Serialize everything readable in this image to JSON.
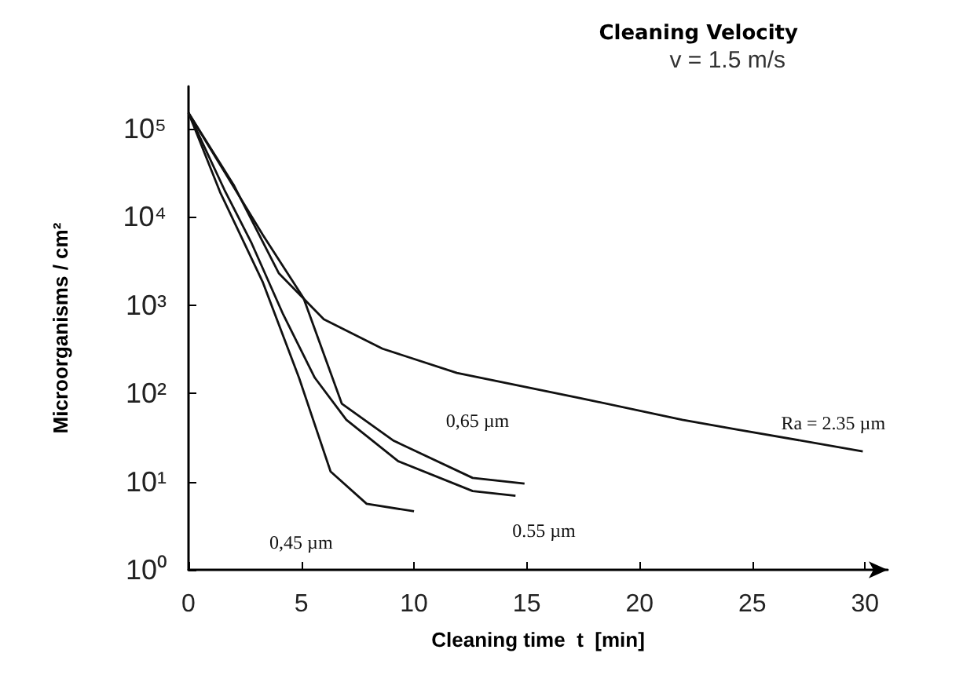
{
  "chart_data": {
    "type": "line",
    "title": "Cleaning Velocity",
    "subtitle": "v = 1.5 m/s",
    "xlabel": "Cleaning time  t  [min]",
    "ylabel": "Microorganisms / cm²",
    "log": "y",
    "grid": false,
    "marker": "none",
    "line_style": "solid",
    "xlim": [
      0,
      31
    ],
    "xticks": [
      0,
      5,
      10,
      15,
      20,
      25,
      30
    ],
    "ylim": [
      1,
      300000
    ],
    "yticks": [
      {
        "value": 1,
        "label": "10⁰"
      },
      {
        "value": 10,
        "label": "10¹"
      },
      {
        "value": 100,
        "label": "10²"
      },
      {
        "value": 1000,
        "label": "10³"
      },
      {
        "value": 10000,
        "label": "10⁴"
      },
      {
        "value": 100000,
        "label": "10⁵"
      }
    ],
    "series": [
      {
        "name": "Ra = 2.35 µm",
        "color": "#111111",
        "x": [
          0,
          2,
          4,
          6,
          8.6,
          11.9,
          17.3,
          21.9,
          24.3,
          29.9
        ],
        "values": [
          150000,
          23000,
          2300,
          690,
          320,
          170,
          89,
          50,
          39,
          22
        ]
      },
      {
        "name": "0,65 µm",
        "color": "#111111",
        "x": [
          0,
          1.9,
          3.3,
          5.1,
          6.8,
          9.1,
          12.6,
          14.9
        ],
        "values": [
          150000,
          24000,
          6200,
          1200,
          76,
          29,
          11,
          9.5
        ]
      },
      {
        "name": "0.55 µm",
        "color": "#111111",
        "x": [
          0,
          1.6,
          2.8,
          4.2,
          5.6,
          7,
          9.3,
          12.6,
          14.5
        ],
        "values": [
          150000,
          20000,
          5000,
          780,
          150,
          50,
          17,
          7.8,
          6.9
        ]
      },
      {
        "name": "0,45 µm",
        "color": "#111111",
        "x": [
          0,
          1.4,
          3.3,
          4.9,
          6.3,
          7.9,
          10
        ],
        "values": [
          150000,
          19000,
          1800,
          150,
          13,
          5.6,
          4.6
        ]
      }
    ]
  }
}
